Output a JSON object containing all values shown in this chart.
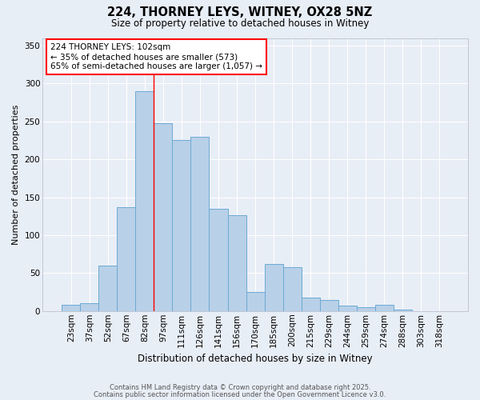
{
  "title1": "224, THORNEY LEYS, WITNEY, OX28 5NZ",
  "title2": "Size of property relative to detached houses in Witney",
  "xlabel": "Distribution of detached houses by size in Witney",
  "ylabel": "Number of detached properties",
  "bar_color": "#b8d0e8",
  "bar_edge_color": "#6aaad4",
  "background_color": "#e8eef6",
  "grid_color": "#ffffff",
  "categories": [
    "23sqm",
    "37sqm",
    "52sqm",
    "67sqm",
    "82sqm",
    "97sqm",
    "111sqm",
    "126sqm",
    "141sqm",
    "156sqm",
    "170sqm",
    "185sqm",
    "200sqm",
    "215sqm",
    "229sqm",
    "244sqm",
    "259sqm",
    "274sqm",
    "288sqm",
    "303sqm",
    "318sqm"
  ],
  "values": [
    8,
    10,
    60,
    137,
    290,
    248,
    225,
    230,
    135,
    126,
    25,
    62,
    58,
    18,
    15,
    7,
    5,
    8,
    2,
    0,
    0
  ],
  "ylim": [
    0,
    360
  ],
  "yticks": [
    0,
    50,
    100,
    150,
    200,
    250,
    300,
    350
  ],
  "red_line_index": 5,
  "annotation_text": "224 THORNEY LEYS: 102sqm\n← 35% of detached houses are smaller (573)\n65% of semi-detached houses are larger (1,057) →",
  "footer1": "Contains HM Land Registry data © Crown copyright and database right 2025.",
  "footer2": "Contains public sector information licensed under the Open Government Licence v3.0.",
  "figsize": [
    6.0,
    5.0
  ],
  "dpi": 100
}
